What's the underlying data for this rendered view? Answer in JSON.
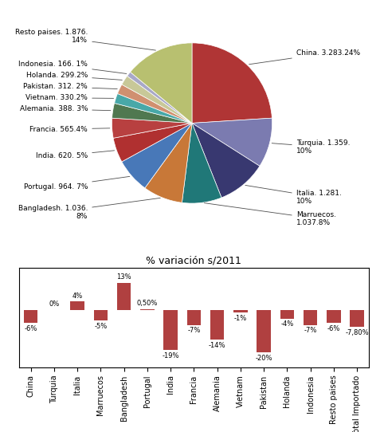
{
  "chart_data": [
    {
      "type": "pie",
      "categories": [
        "China. 3.283.24%",
        "Turquia. 1.359.\n10%",
        "Italia. 1.281.\n10%",
        "Marruecos.\n1.037.8%",
        "Bangladesh. 1.036.\n8%",
        "Portugal. 964. 7%",
        "India. 620. 5%",
        "Francia. 565.4%",
        "Alemania. 388. 3%",
        "Vietnam. 330.2%",
        "Pakistan. 312. 2%",
        "Holanda. 299.2%",
        "Indonesia. 166. 1%",
        "Resto paises. 1.876.\n14%"
      ],
      "values": [
        24,
        10,
        10,
        8,
        8,
        7,
        5,
        4,
        3,
        2,
        2,
        2,
        1,
        14
      ],
      "colors": [
        "#b03535",
        "#7b7bb0",
        "#383870",
        "#207878",
        "#c87838",
        "#4878b8",
        "#b03030",
        "#b84040",
        "#507850",
        "#48a8a8",
        "#d09070",
        "#c8c898",
        "#a8a8c8",
        "#b8c070"
      ]
    },
    {
      "type": "bar",
      "title": "% variación s/2011",
      "categories": [
        "China",
        "Turquia",
        "Italia",
        "Marruecos",
        "Bangladesh",
        "Portugal",
        "India",
        "Francia",
        "Alemania",
        "Vietnam",
        "Pakistan",
        "Holanda",
        "Indonesia",
        "Resto paises",
        "Total Importado"
      ],
      "values": [
        -6,
        0,
        4,
        -5,
        13,
        0.5,
        -19,
        -7,
        -14,
        -1,
        -20,
        -4,
        -7,
        -6,
        -7.8
      ],
      "value_labels": [
        "-6%",
        "0%",
        "4%",
        "-5%",
        "13%",
        "0,50%",
        "-19%",
        "-7%",
        "-14%",
        "-1%",
        "-20%",
        "-4%",
        "-7%",
        "-6%",
        "-7,80%"
      ],
      "data_labels": true,
      "color": "#b04040",
      "ylim": [
        -27,
        20
      ],
      "tick_labels": "x"
    }
  ]
}
